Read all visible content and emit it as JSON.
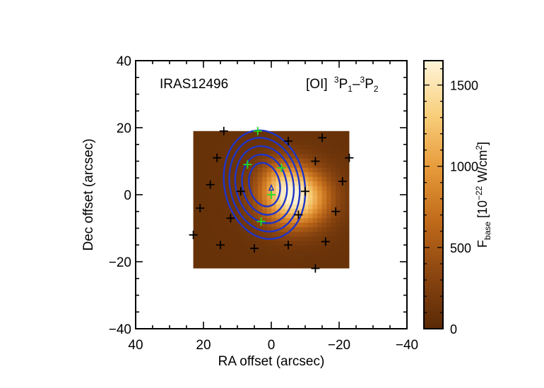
{
  "chart_data": {
    "type": "heatmap",
    "title": "",
    "xlabel": "RA offset (arcsec)",
    "ylabel": "Dec offset (arcsec)",
    "xlim": [
      40,
      -40
    ],
    "ylim": [
      -40,
      40
    ],
    "xticks": [
      40,
      20,
      0,
      -20,
      -40
    ],
    "yticks": [
      -40,
      -20,
      0,
      20,
      40
    ],
    "annotations": {
      "source": "IRAS12496",
      "line_main": "[OI]",
      "line_sup1": "3",
      "line_p1": "P",
      "line_sub1": "1",
      "line_dash": "–",
      "line_sup2": "3",
      "line_p2": "P",
      "line_sub2": "2"
    },
    "image_extent": {
      "x": [
        23,
        -23
      ],
      "y": [
        -22,
        19
      ]
    },
    "emission_peak": {
      "x": -7,
      "y": -1,
      "value": 1650
    },
    "colorbar": {
      "range": [
        0,
        1650
      ],
      "ticks": [
        0,
        500,
        1000,
        1500
      ],
      "label_main": "F",
      "label_sub": "base",
      "label_rest": " [10",
      "label_exp": "−22",
      "label_unit": " W/cm",
      "label_unit_exp": "2",
      "label_close": "]",
      "colors": [
        "#5a2a06",
        "#8a4510",
        "#c06a1a",
        "#e79a3a",
        "#f8cf7c",
        "#fff5da"
      ]
    },
    "contours": {
      "color": "#1f34c8",
      "center": {
        "x": 2,
        "y": 3
      },
      "levels": [
        {
          "rx": 4.5,
          "ry": 6.5
        },
        {
          "rx": 6.5,
          "ry": 9.0
        },
        {
          "rx": 8.5,
          "ry": 11.5
        },
        {
          "rx": 10.2,
          "ry": 14.0
        },
        {
          "rx": 11.8,
          "ry": 16.2
        }
      ],
      "tilt_deg": -12
    },
    "spaxels_black": [
      {
        "x": 14,
        "y": 19
      },
      {
        "x": -5,
        "y": 16
      },
      {
        "x": -15,
        "y": 17
      },
      {
        "x": 16,
        "y": 11
      },
      {
        "x": -13,
        "y": 10
      },
      {
        "x": -23,
        "y": 11
      },
      {
        "x": 18,
        "y": 3
      },
      {
        "x": 9,
        "y": 1
      },
      {
        "x": -10,
        "y": 1
      },
      {
        "x": -21,
        "y": 4
      },
      {
        "x": 21,
        "y": -4
      },
      {
        "x": 12,
        "y": -7
      },
      {
        "x": -8,
        "y": -6
      },
      {
        "x": -19,
        "y": -5
      },
      {
        "x": 23,
        "y": -12
      },
      {
        "x": 15,
        "y": -15
      },
      {
        "x": 5,
        "y": -16
      },
      {
        "x": -5,
        "y": -15
      },
      {
        "x": -16,
        "y": -14
      },
      {
        "x": -13,
        "y": -22
      }
    ],
    "spaxels_green": [
      {
        "x": 4,
        "y": 19
      },
      {
        "x": 7,
        "y": 9
      },
      {
        "x": -3,
        "y": 8
      },
      {
        "x": 0,
        "y": 0
      },
      {
        "x": 3,
        "y": -8
      }
    ],
    "center_marker": {
      "x": 0,
      "y": 2
    }
  }
}
